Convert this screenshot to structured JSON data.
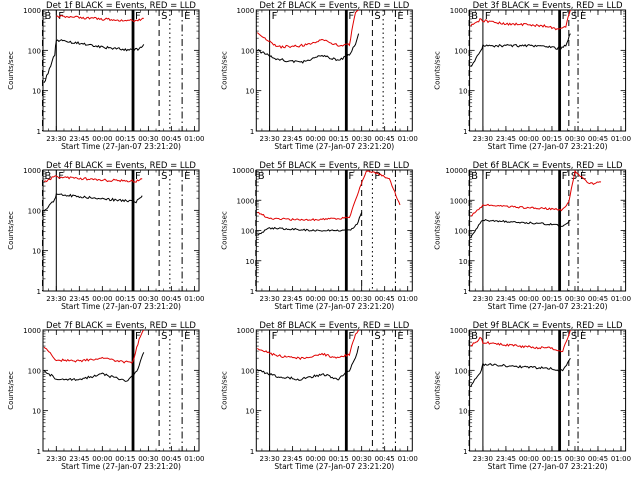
{
  "figure": {
    "background": "#ffffff",
    "colors": {
      "events": "#000000",
      "lld": "#e00000",
      "axes": "#000000"
    }
  },
  "chart_data": [
    {
      "type": "line",
      "title": "Det 1f BLACK = Events, RED = LLD",
      "xlabel": "Start Time (27-Jan-07 23:21:20)",
      "ylabel": "Counts/sec",
      "scale": "log",
      "ylim": [
        1,
        1000
      ],
      "yticks": [
        "1",
        "10",
        "100",
        "1000"
      ],
      "x": [
        "23:30",
        "23:45",
        "00:00",
        "00:15",
        "00:30",
        "00:45",
        "01:00"
      ],
      "markers": [
        {
          "x": "23:21",
          "label": "B",
          "style": "dash"
        },
        {
          "x": "23:30",
          "label": "F",
          "style": "solid"
        },
        {
          "x": "00:20",
          "label": "F",
          "style": "thick"
        },
        {
          "x": "00:37",
          "label": "S",
          "style": "dash"
        },
        {
          "x": "00:44",
          "label": "",
          "style": "dot"
        },
        {
          "x": "00:52",
          "label": "E",
          "style": "dashdot"
        }
      ],
      "series": [
        {
          "name": "Events",
          "color": "#000000",
          "t": [
            "23:22",
            "23:29",
            "23:30",
            "23:45",
            "00:00",
            "00:10",
            "00:15",
            "00:20",
            "00:24",
            "00:27"
          ],
          "v": [
            15,
            80,
            180,
            150,
            120,
            110,
            105,
            100,
            110,
            140
          ]
        },
        {
          "name": "LLD",
          "color": "#e00000",
          "t": [
            "23:30",
            "23:45",
            "00:00",
            "00:10",
            "00:15",
            "00:20",
            "00:24",
            "00:27"
          ],
          "v": [
            700,
            650,
            600,
            560,
            550,
            530,
            560,
            620
          ]
        }
      ]
    },
    {
      "type": "line",
      "title": "Det 2f BLACK = Events, RED = LLD",
      "xlabel": "Start Time (27-Jan-07 23:21:20)",
      "ylabel": "Counts/sec",
      "scale": "log",
      "ylim": [
        1,
        1000
      ],
      "yticks": [
        "1",
        "10",
        "100",
        "1000"
      ],
      "x": [
        "23:30",
        "23:45",
        "00:00",
        "00:15",
        "00:30",
        "00:45",
        "01:00"
      ],
      "markers": [
        {
          "x": "23:30",
          "label": "F",
          "style": "solid"
        },
        {
          "x": "00:20",
          "label": "F",
          "style": "thick"
        },
        {
          "x": "00:37",
          "label": "S",
          "style": "dash"
        },
        {
          "x": "00:44",
          "label": "",
          "style": "dot"
        },
        {
          "x": "00:52",
          "label": "E",
          "style": "dashdot"
        }
      ],
      "series": [
        {
          "name": "Events",
          "color": "#000000",
          "t": [
            "23:22",
            "23:35",
            "23:50",
            "00:05",
            "00:15",
            "00:22",
            "00:26",
            "00:28"
          ],
          "v": [
            100,
            60,
            50,
            75,
            55,
            80,
            140,
            260
          ]
        },
        {
          "name": "LLD",
          "color": "#e00000",
          "t": [
            "23:22",
            "23:35",
            "23:50",
            "00:05",
            "00:15",
            "00:22",
            "00:26",
            "00:28"
          ],
          "v": [
            260,
            120,
            130,
            180,
            130,
            140,
            900,
            1000
          ]
        }
      ]
    },
    {
      "type": "line",
      "title": "Det 3f BLACK = Events, RED = LLD",
      "xlabel": "Start Time (27-Jan-07 23:21:20)",
      "ylabel": "Counts/sec",
      "scale": "log",
      "ylim": [
        1,
        1000
      ],
      "yticks": [
        "1",
        "10",
        "100",
        "1000"
      ],
      "x": [
        "23:30",
        "23:45",
        "00:00",
        "00:15",
        "00:30",
        "00:45",
        "01:00"
      ],
      "markers": [
        {
          "x": "23:21",
          "label": "B",
          "style": "dash"
        },
        {
          "x": "23:30",
          "label": "F",
          "style": "solid"
        },
        {
          "x": "00:20",
          "label": "F",
          "style": "thick"
        },
        {
          "x": "00:26",
          "label": "S",
          "style": "dash"
        },
        {
          "x": "00:32",
          "label": "E",
          "style": "dashdot"
        }
      ],
      "series": [
        {
          "name": "Events",
          "color": "#000000",
          "t": [
            "23:22",
            "23:29",
            "23:30",
            "23:45",
            "00:00",
            "00:10",
            "00:20",
            "00:24",
            "00:27"
          ],
          "v": [
            40,
            100,
            130,
            130,
            130,
            125,
            110,
            130,
            260
          ]
        },
        {
          "name": "LLD",
          "color": "#e00000",
          "t": [
            "23:22",
            "23:29",
            "23:30",
            "23:45",
            "00:00",
            "00:10",
            "00:20",
            "00:24",
            "00:27"
          ],
          "v": [
            400,
            600,
            550,
            450,
            430,
            400,
            320,
            400,
            1000
          ]
        }
      ]
    },
    {
      "type": "line",
      "title": "Det 4f BLACK = Events, RED = LLD",
      "xlabel": "Start Time (27-Jan-07 23:21:20)",
      "ylabel": "Counts/sec",
      "scale": "log",
      "ylim": [
        1,
        1000
      ],
      "yticks": [
        "1",
        "10",
        "100",
        "1000"
      ],
      "x": [
        "23:30",
        "23:45",
        "00:00",
        "00:15",
        "00:30",
        "00:45",
        "01:00"
      ],
      "markers": [
        {
          "x": "23:21",
          "label": "B",
          "style": "dash"
        },
        {
          "x": "23:30",
          "label": "F",
          "style": "solid"
        },
        {
          "x": "00:20",
          "label": "F",
          "style": "thick"
        },
        {
          "x": "00:37",
          "label": "S",
          "style": "dash"
        },
        {
          "x": "00:44",
          "label": "",
          "style": "dot"
        },
        {
          "x": "00:52",
          "label": "E",
          "style": "dashdot"
        }
      ],
      "series": [
        {
          "name": "Events",
          "color": "#000000",
          "t": [
            "23:22",
            "23:29",
            "23:30",
            "23:45",
            "00:00",
            "00:15",
            "00:22",
            "00:26"
          ],
          "v": [
            100,
            180,
            250,
            220,
            190,
            175,
            160,
            230
          ]
        },
        {
          "name": "LLD",
          "color": "#e00000",
          "t": [
            "23:22",
            "23:29",
            "23:30",
            "23:45",
            "00:00",
            "00:15",
            "00:22",
            "00:26"
          ],
          "v": [
            500,
            700,
            680,
            620,
            560,
            540,
            520,
            600
          ]
        }
      ]
    },
    {
      "type": "line",
      "title": "Det 5f BLACK = Events, RED = LLD",
      "xlabel": "Start Time (27-Jan-07 23:21:20)",
      "ylabel": "Counts/sec",
      "scale": "log",
      "ylim": [
        1,
        10000
      ],
      "yticks": [
        "1",
        "10",
        "100",
        "1000",
        "10000"
      ],
      "x": [
        "23:30",
        "23:45",
        "00:00",
        "00:15",
        "00:30",
        "00:45",
        "01:00"
      ],
      "markers": [
        {
          "x": "23:21",
          "label": "B",
          "style": "dash"
        },
        {
          "x": "00:20",
          "label": "F",
          "style": "thick"
        },
        {
          "x": "00:30",
          "label": "",
          "style": "dash"
        },
        {
          "x": "00:37",
          "label": "P",
          "style": "dot"
        },
        {
          "x": "00:52",
          "label": "",
          "style": "dashdot"
        }
      ],
      "series": [
        {
          "name": "Events",
          "color": "#000000",
          "t": [
            "23:22",
            "23:30",
            "23:45",
            "00:00",
            "00:15",
            "00:22",
            "00:27",
            "00:30"
          ],
          "v": [
            70,
            120,
            110,
            100,
            100,
            100,
            160,
            400
          ]
        },
        {
          "name": "LLD",
          "color": "#e00000",
          "t": [
            "23:22",
            "23:30",
            "23:45",
            "00:00",
            "00:15",
            "00:22",
            "00:28",
            "00:33",
            "00:40",
            "00:48",
            "00:55"
          ],
          "v": [
            400,
            250,
            230,
            230,
            250,
            270,
            2000,
            9000,
            8000,
            5000,
            700
          ]
        }
      ]
    },
    {
      "type": "line",
      "title": "Det 6f BLACK = Events, RED = LLD",
      "xlabel": "Start Time (27-Jan-07 23:21:20)",
      "ylabel": "Counts/sec",
      "scale": "log",
      "ylim": [
        1,
        10000
      ],
      "yticks": [
        "1",
        "10",
        "100",
        "1000",
        "10000"
      ],
      "x": [
        "23:30",
        "23:45",
        "00:00",
        "00:15",
        "00:30",
        "00:45",
        "01:00"
      ],
      "markers": [
        {
          "x": "23:21",
          "label": "B",
          "style": "dash"
        },
        {
          "x": "23:30",
          "label": "F",
          "style": "solid"
        },
        {
          "x": "00:20",
          "label": "F",
          "style": "thick"
        },
        {
          "x": "00:26",
          "label": "S",
          "style": "dash"
        },
        {
          "x": "00:32",
          "label": "E",
          "style": "dashdot"
        }
      ],
      "series": [
        {
          "name": "Events",
          "color": "#000000",
          "t": [
            "23:22",
            "23:29",
            "23:30",
            "23:45",
            "00:00",
            "00:15",
            "00:22",
            "00:27"
          ],
          "v": [
            60,
            200,
            220,
            200,
            180,
            160,
            140,
            220
          ]
        },
        {
          "name": "LLD",
          "color": "#e00000",
          "t": [
            "23:22",
            "23:29",
            "23:30",
            "23:45",
            "00:00",
            "00:15",
            "00:22",
            "00:26",
            "00:30",
            "00:34",
            "00:38",
            "00:42",
            "00:47"
          ],
          "v": [
            300,
            600,
            700,
            620,
            560,
            520,
            480,
            900,
            9000,
            6000,
            4000,
            3500,
            4000
          ]
        }
      ]
    },
    {
      "type": "line",
      "title": "Det 7f BLACK = Events, RED = LLD",
      "xlabel": "Start Time (27-Jan-07 23:21:20)",
      "ylabel": "Counts/sec",
      "scale": "log",
      "ylim": [
        1,
        1000
      ],
      "yticks": [
        "1",
        "10",
        "100",
        "1000"
      ],
      "x": [
        "23:30",
        "23:45",
        "00:00",
        "00:15",
        "00:30",
        "00:45",
        "01:00"
      ],
      "markers": [
        {
          "x": "00:20",
          "label": "F",
          "style": "thick"
        },
        {
          "x": "00:37",
          "label": "S",
          "style": "dash"
        },
        {
          "x": "00:44",
          "label": "",
          "style": "dot"
        },
        {
          "x": "00:52",
          "label": "E",
          "style": "dashdot"
        }
      ],
      "series": [
        {
          "name": "Events",
          "color": "#000000",
          "t": [
            "23:22",
            "23:30",
            "23:45",
            "00:00",
            "00:15",
            "00:20",
            "00:24",
            "00:27"
          ],
          "v": [
            100,
            60,
            60,
            80,
            55,
            70,
            130,
            280
          ]
        },
        {
          "name": "LLD",
          "color": "#e00000",
          "t": [
            "23:22",
            "23:30",
            "23:45",
            "00:00",
            "00:15",
            "00:20",
            "00:24",
            "00:27"
          ],
          "v": [
            400,
            180,
            170,
            200,
            160,
            160,
            600,
            1000
          ]
        }
      ]
    },
    {
      "type": "line",
      "title": "Det 8f BLACK = Events, RED = LLD",
      "xlabel": "Start Time (27-Jan-07 23:21:20)",
      "ylabel": "Counts/sec",
      "scale": "log",
      "ylim": [
        1,
        1000
      ],
      "yticks": [
        "1",
        "10",
        "100",
        "1000"
      ],
      "x": [
        "23:30",
        "23:45",
        "00:00",
        "00:15",
        "00:30",
        "00:45",
        "01:00"
      ],
      "markers": [
        {
          "x": "23:30",
          "label": "F",
          "style": "solid"
        },
        {
          "x": "00:20",
          "label": "F",
          "style": "thick"
        },
        {
          "x": "00:37",
          "label": "S",
          "style": "dash"
        },
        {
          "x": "00:44",
          "label": "",
          "style": "dot"
        },
        {
          "x": "00:52",
          "label": "E",
          "style": "dashdot"
        }
      ],
      "series": [
        {
          "name": "Events",
          "color": "#000000",
          "t": [
            "23:22",
            "23:35",
            "23:50",
            "00:05",
            "00:15",
            "00:22",
            "00:26",
            "00:28"
          ],
          "v": [
            100,
            70,
            60,
            80,
            60,
            100,
            200,
            400
          ]
        },
        {
          "name": "LLD",
          "color": "#e00000",
          "t": [
            "23:22",
            "23:35",
            "23:50",
            "00:05",
            "00:15",
            "00:22",
            "00:26",
            "00:28"
          ],
          "v": [
            350,
            230,
            200,
            250,
            200,
            250,
            800,
            1000
          ]
        }
      ]
    },
    {
      "type": "line",
      "title": "Det 9f BLACK = Events, RED = LLD",
      "xlabel": "Start Time (27-Jan-07 23:21:20)",
      "ylabel": "Counts/sec",
      "scale": "log",
      "ylim": [
        1,
        1000
      ],
      "yticks": [
        "1",
        "10",
        "100",
        "1000"
      ],
      "x": [
        "23:30",
        "23:45",
        "00:00",
        "00:15",
        "00:30",
        "00:45",
        "01:00"
      ],
      "markers": [
        {
          "x": "23:21",
          "label": "B",
          "style": "dash"
        },
        {
          "x": "23:30",
          "label": "F",
          "style": "solid"
        },
        {
          "x": "00:20",
          "label": "F",
          "style": "thick"
        },
        {
          "x": "00:26",
          "label": "S",
          "style": "dash"
        },
        {
          "x": "00:32",
          "label": "E",
          "style": "dashdot"
        }
      ],
      "series": [
        {
          "name": "Events",
          "color": "#000000",
          "t": [
            "23:22",
            "23:29",
            "23:30",
            "23:45",
            "00:00",
            "00:15",
            "00:22",
            "00:27"
          ],
          "v": [
            40,
            100,
            140,
            130,
            120,
            110,
            95,
            200
          ]
        },
        {
          "name": "LLD",
          "color": "#e00000",
          "t": [
            "23:22",
            "23:29",
            "23:30",
            "23:45",
            "00:00",
            "00:15",
            "00:22",
            "00:27"
          ],
          "v": [
            400,
            650,
            500,
            420,
            380,
            350,
            300,
            1000
          ]
        }
      ]
    }
  ]
}
